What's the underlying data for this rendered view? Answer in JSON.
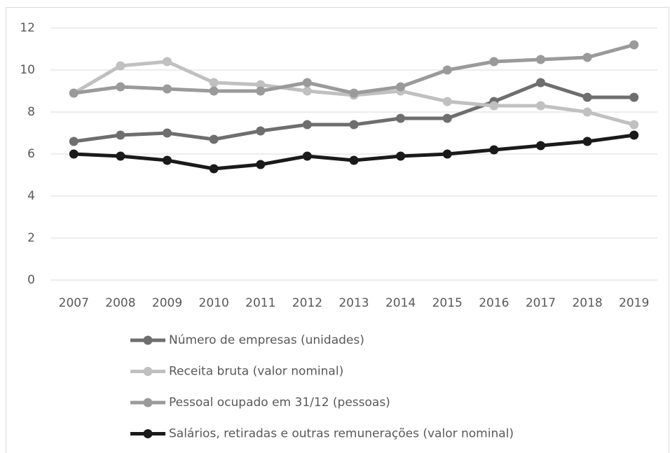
{
  "chart_data": {
    "type": "line",
    "categories": [
      "2007",
      "2008",
      "2009",
      "2010",
      "2011",
      "2012",
      "2013",
      "2014",
      "2015",
      "2016",
      "2017",
      "2018",
      "2019"
    ],
    "series": [
      {
        "name": "Número de empresas (unidades)",
        "color": "#6e6e6e",
        "values": [
          6.6,
          6.9,
          7.0,
          6.7,
          7.1,
          7.4,
          7.4,
          7.7,
          7.7,
          8.5,
          9.4,
          8.7,
          8.7
        ]
      },
      {
        "name": "Receita bruta (valor nominal)",
        "color": "#c0c0c0",
        "values": [
          8.9,
          10.2,
          10.4,
          9.4,
          9.3,
          9.0,
          8.8,
          9.0,
          8.5,
          8.3,
          8.3,
          8.0,
          7.4
        ]
      },
      {
        "name": "Pessoal ocupado em 31/12 (pessoas)",
        "color": "#9a9a9a",
        "values": [
          8.9,
          9.2,
          9.1,
          9.0,
          9.0,
          9.4,
          8.9,
          9.2,
          10.0,
          10.4,
          10.5,
          10.6,
          11.2
        ]
      },
      {
        "name": "Salários, retiradas e outras remunerações (valor nominal)",
        "color": "#1a1a1a",
        "values": [
          6.0,
          5.9,
          5.7,
          5.3,
          5.5,
          5.9,
          5.7,
          5.9,
          6.0,
          6.2,
          6.4,
          6.6,
          6.9
        ]
      }
    ],
    "ylim": [
      0,
      12
    ],
    "yticks": [
      0,
      2,
      4,
      6,
      8,
      10,
      12
    ],
    "grid": true,
    "legend": "bottom"
  }
}
